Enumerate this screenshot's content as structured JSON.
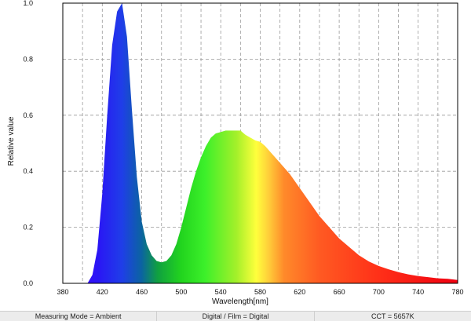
{
  "status_bar": {
    "measuring_mode": "Measuring Mode = Ambient",
    "film_mode": "Digital / Film = Digital",
    "cct": "CCT = 5657K"
  },
  "chart_data": {
    "type": "area",
    "title": "",
    "xlabel": "Wavelength[nm]",
    "ylabel": "Relative value",
    "xlim": [
      380,
      780
    ],
    "ylim": [
      0,
      1.0
    ],
    "grid": true,
    "x_ticks": [
      "380",
      "420",
      "460",
      "500",
      "540",
      "580",
      "620",
      "660",
      "700",
      "740",
      "780"
    ],
    "y_ticks": [
      "0.0",
      "0.2",
      "0.4",
      "0.6",
      "0.8",
      "1.0"
    ],
    "fill": "spectral-gradient",
    "x": [
      405,
      410,
      415,
      420,
      425,
      430,
      435,
      440,
      445,
      450,
      455,
      460,
      465,
      470,
      475,
      480,
      485,
      490,
      495,
      500,
      505,
      510,
      515,
      520,
      525,
      530,
      535,
      540,
      545,
      550,
      555,
      560,
      565,
      570,
      575,
      580,
      585,
      590,
      595,
      600,
      610,
      620,
      630,
      640,
      650,
      660,
      670,
      680,
      690,
      700,
      710,
      720,
      730,
      740,
      750,
      760,
      770,
      780
    ],
    "values": [
      0.0,
      0.03,
      0.12,
      0.32,
      0.6,
      0.85,
      0.97,
      1.0,
      0.88,
      0.62,
      0.38,
      0.22,
      0.14,
      0.1,
      0.08,
      0.075,
      0.08,
      0.1,
      0.14,
      0.2,
      0.27,
      0.34,
      0.4,
      0.45,
      0.49,
      0.52,
      0.535,
      0.54,
      0.545,
      0.545,
      0.545,
      0.545,
      0.53,
      0.52,
      0.51,
      0.505,
      0.49,
      0.47,
      0.45,
      0.43,
      0.39,
      0.34,
      0.29,
      0.24,
      0.2,
      0.16,
      0.13,
      0.1,
      0.078,
      0.062,
      0.05,
      0.04,
      0.032,
      0.026,
      0.022,
      0.018,
      0.016,
      0.012
    ]
  }
}
